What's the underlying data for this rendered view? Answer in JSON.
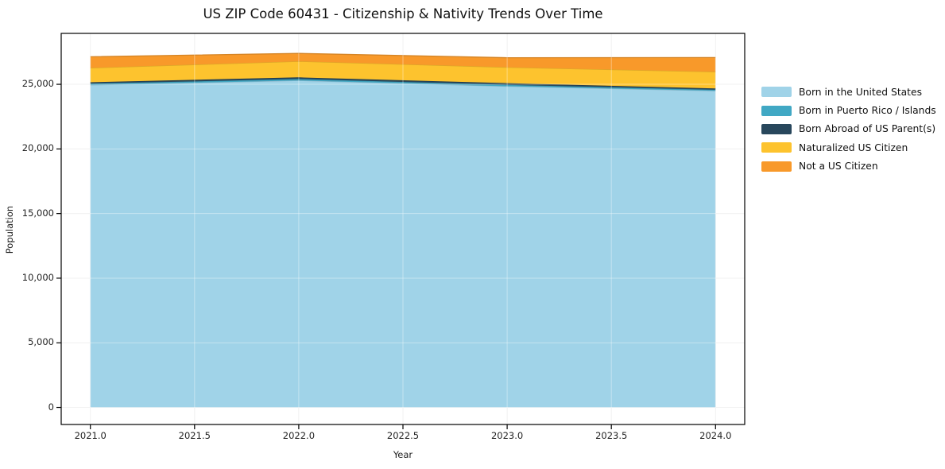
{
  "chart_data": {
    "type": "area",
    "stacked": true,
    "title": "US ZIP Code 60431 - Citizenship & Nativity Trends Over Time",
    "xlabel": "Year",
    "ylabel": "Population",
    "x": [
      2021,
      2022,
      2023,
      2024
    ],
    "series": [
      {
        "name": "Born in the United States",
        "color": "#a0d3e8",
        "values": [
          24950,
          25300,
          24850,
          24500
        ]
      },
      {
        "name": "Born in Puerto Rico / Islands",
        "color": "#41a8c4",
        "values": [
          100,
          110,
          110,
          80
        ]
      },
      {
        "name": "Born Abroad of US Parent(s)",
        "color": "#28475c",
        "values": [
          110,
          130,
          130,
          100
        ]
      },
      {
        "name": "Naturalized US Citizen",
        "color": "#fdc32e",
        "values": [
          1110,
          1240,
          1230,
          1290
        ]
      },
      {
        "name": "Not a US Citizen",
        "color": "#f8992a",
        "values": [
          860,
          610,
          740,
          1100
        ]
      }
    ],
    "x_ticks": [
      "2021.0",
      "2021.5",
      "2022.0",
      "2022.5",
      "2023.0",
      "2023.5",
      "2024.0"
    ],
    "x_tick_values": [
      2021,
      2021.5,
      2022,
      2022.5,
      2023,
      2023.5,
      2024
    ],
    "y_ticks": [
      "0",
      "5,000",
      "10,000",
      "15,000",
      "20,000",
      "25,000"
    ],
    "y_tick_values": [
      0,
      5000,
      10000,
      15000,
      20000,
      25000
    ],
    "xlim": [
      2020.86,
      2024.14
    ],
    "ylim": [
      -1320,
      28940
    ],
    "grid": true,
    "legend_position": "right",
    "axis_color": "#000000",
    "grid_color": "#ebebeb",
    "background_color": "#ffffff"
  }
}
